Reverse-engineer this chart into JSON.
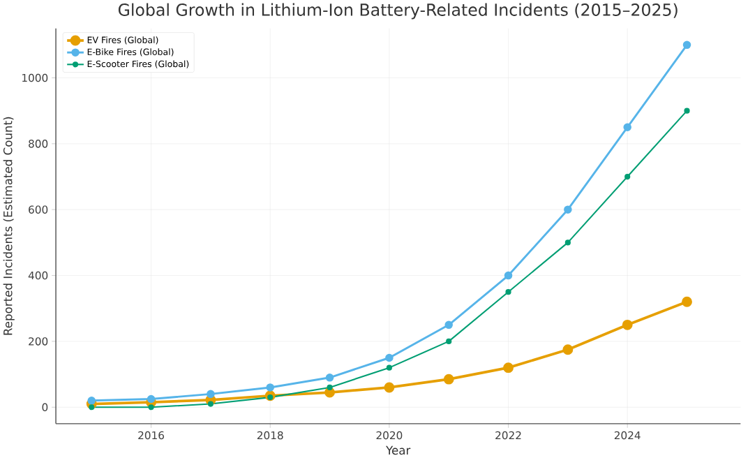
{
  "chart_data": {
    "type": "line",
    "title": "Global Growth in Lithium-Ion Battery-Related Incidents (2015–2025)",
    "xlabel": "Year",
    "ylabel": "Reported Incidents (Estimated Count)",
    "x": [
      2015,
      2016,
      2017,
      2018,
      2019,
      2020,
      2021,
      2022,
      2023,
      2024,
      2025
    ],
    "series": [
      {
        "name": "EV Fires (Global)",
        "color": "#e69f00",
        "values": [
          10,
          15,
          22,
          35,
          45,
          60,
          85,
          120,
          175,
          250,
          320
        ]
      },
      {
        "name": "E-Bike Fires (Global)",
        "color": "#56b4e9",
        "values": [
          20,
          25,
          40,
          60,
          90,
          150,
          250,
          400,
          600,
          850,
          1100
        ]
      },
      {
        "name": "E-Scooter Fires (Global)",
        "color": "#009e73",
        "values": [
          0,
          0,
          10,
          30,
          60,
          120,
          200,
          350,
          500,
          700,
          900
        ]
      }
    ],
    "xlim": [
      2014.4,
      2025.9
    ],
    "ylim": [
      -50,
      1150
    ],
    "xticks": [
      2016,
      2018,
      2020,
      2022,
      2024
    ],
    "yticks": [
      0,
      200,
      400,
      600,
      800,
      1000
    ],
    "grid": true,
    "legend": "top left",
    "marker": "circle",
    "line_style": "solid"
  }
}
